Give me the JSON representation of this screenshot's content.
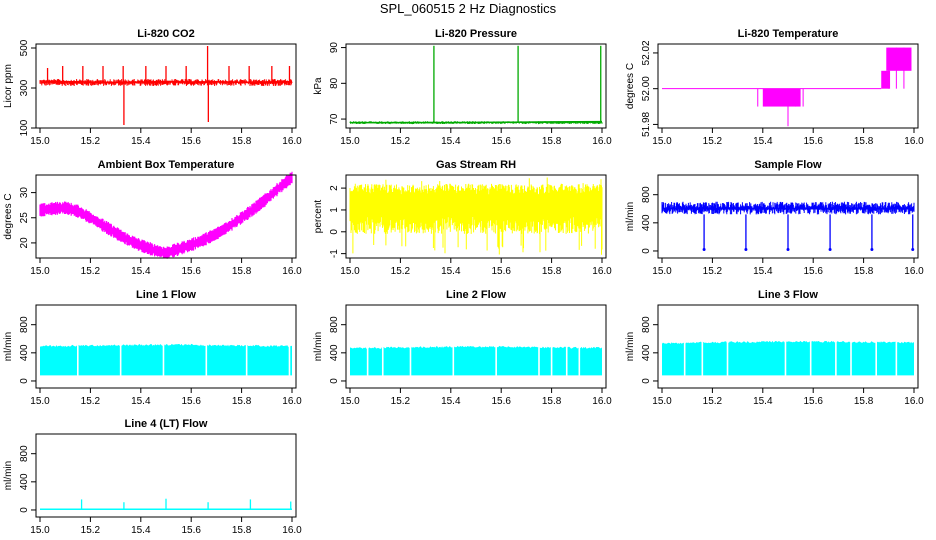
{
  "figure": {
    "title": "SPL_060515  2 Hz Diagnostics"
  },
  "chart_data": [
    {
      "id": "co2",
      "type": "line",
      "title": "Li-820 CO2",
      "ylabel": "Licor ppm",
      "xlabel": "",
      "color": "#ff0000",
      "xlim": [
        15.0,
        16.0
      ],
      "ylim": [
        100,
        520
      ],
      "xticks": [
        15.0,
        15.2,
        15.4,
        15.6,
        15.8,
        16.0
      ],
      "xtick_labels": [
        "15.0",
        "15.2",
        "15.4",
        "15.6",
        "15.8",
        "16.0"
      ],
      "yticks": [
        100,
        300,
        500
      ],
      "ytick_labels": [
        "100",
        "300",
        "500"
      ],
      "noise_band": [
        310,
        345
      ],
      "series": [
        {
          "name": "CO2",
          "x": [
            15.0,
            15.1,
            15.2,
            15.3,
            15.4,
            15.5,
            15.6,
            15.7,
            15.8,
            15.9,
            16.0
          ],
          "y": [
            335,
            332,
            330,
            328,
            330,
            332,
            330,
            331,
            329,
            330,
            331
          ]
        }
      ],
      "spikes": [
        {
          "x": 15.03,
          "y": 400
        },
        {
          "x": 15.09,
          "y": 410
        },
        {
          "x": 15.17,
          "y": 410
        },
        {
          "x": 15.25,
          "y": 410
        },
        {
          "x": 15.33,
          "y": 410
        },
        {
          "x": 15.333,
          "y": 115
        },
        {
          "x": 15.42,
          "y": 410
        },
        {
          "x": 15.5,
          "y": 410
        },
        {
          "x": 15.58,
          "y": 410
        },
        {
          "x": 15.665,
          "y": 510
        },
        {
          "x": 15.668,
          "y": 130
        },
        {
          "x": 15.75,
          "y": 410
        },
        {
          "x": 15.83,
          "y": 410
        },
        {
          "x": 15.92,
          "y": 410
        },
        {
          "x": 15.99,
          "y": 410
        }
      ]
    },
    {
      "id": "pressure",
      "type": "line",
      "title": "Li-820 Pressure",
      "ylabel": "kPa",
      "xlabel": "",
      "color": "#00aa00",
      "xlim": [
        15.0,
        16.0
      ],
      "ylim": [
        67.5,
        91
      ],
      "xticks": [
        15.0,
        15.2,
        15.4,
        15.6,
        15.8,
        16.0
      ],
      "xtick_labels": [
        "15.0",
        "15.2",
        "15.4",
        "15.6",
        "15.8",
        "16.0"
      ],
      "yticks": [
        70,
        80,
        90
      ],
      "ytick_labels": [
        "70",
        "80",
        "90"
      ],
      "noise_band": [
        68.6,
        69.4
      ],
      "series": [
        {
          "name": "Pressure",
          "x": [
            15.0,
            15.2,
            15.4,
            15.6,
            15.8,
            16.0
          ],
          "y": [
            69.0,
            69.0,
            69.0,
            69.1,
            69.2,
            69.3
          ]
        }
      ],
      "spikes": [
        {
          "x": 15.333,
          "y": 90.5
        },
        {
          "x": 15.667,
          "y": 90.5
        },
        {
          "x": 15.995,
          "y": 90.5
        }
      ]
    },
    {
      "id": "licor-temp",
      "type": "line",
      "title": "Li-820 Temperature",
      "ylabel": "degrees C",
      "xlabel": "",
      "color": "#ff00ff",
      "xlim": [
        15.0,
        16.0
      ],
      "ylim": [
        51.978,
        52.025
      ],
      "xticks": [
        15.0,
        15.2,
        15.4,
        15.6,
        15.8,
        16.0
      ],
      "xtick_labels": [
        "15.0",
        "15.2",
        "15.4",
        "15.6",
        "15.8",
        "16.0"
      ],
      "yticks": [
        51.98,
        52.0,
        52.02
      ],
      "ytick_labels": [
        "51.98",
        "52.00",
        "52.02"
      ],
      "series": [
        {
          "name": "Temperature",
          "x": [
            15.0,
            15.4,
            15.4,
            15.55,
            15.55,
            15.87,
            15.87,
            16.0
          ],
          "y": [
            52.0,
            52.0,
            51.99,
            51.99,
            52.0,
            52.0,
            52.01,
            52.02
          ]
        }
      ],
      "blocks": [
        {
          "x0": 15.4,
          "x1": 15.55,
          "y0": 51.99,
          "y1": 52.0
        },
        {
          "x0": 15.87,
          "x1": 15.905,
          "y0": 52.0,
          "y1": 52.01
        },
        {
          "x0": 15.89,
          "x1": 15.99,
          "y0": 52.01,
          "y1": 52.023
        }
      ]
    },
    {
      "id": "ambient-temp",
      "type": "line",
      "title": "Ambient Box Temperature",
      "ylabel": "degrees C",
      "xlabel": "",
      "color": "#ff00ff",
      "xlim": [
        15.0,
        16.0
      ],
      "ylim": [
        17,
        33.5
      ],
      "xticks": [
        15.0,
        15.2,
        15.4,
        15.6,
        15.8,
        16.0
      ],
      "xtick_labels": [
        "15.0",
        "15.2",
        "15.4",
        "15.6",
        "15.8",
        "16.0"
      ],
      "yticks": [
        20,
        25,
        30
      ],
      "ytick_labels": [
        "20",
        "25",
        "30"
      ],
      "band_width": 1.2,
      "series": [
        {
          "name": "Ambient",
          "x": [
            15.0,
            15.05,
            15.1,
            15.15,
            15.2,
            15.25,
            15.3,
            15.35,
            15.4,
            15.45,
            15.5,
            15.55,
            15.6,
            15.65,
            15.7,
            15.75,
            15.8,
            15.85,
            15.9,
            15.95,
            16.0
          ],
          "y": [
            26.5,
            26.8,
            27.0,
            26.3,
            25.0,
            23.5,
            22.0,
            20.6,
            19.5,
            18.6,
            18.0,
            18.8,
            19.6,
            20.6,
            21.8,
            23.3,
            25.0,
            26.8,
            28.8,
            31.0,
            33.0
          ]
        }
      ]
    },
    {
      "id": "gas-rh",
      "type": "line",
      "title": "Gas Stream RH",
      "ylabel": "percent",
      "xlabel": "",
      "color": "#ffff00",
      "xlim": [
        15.0,
        16.0
      ],
      "ylim": [
        -1.2,
        2.6
      ],
      "xticks": [
        15.0,
        15.2,
        15.4,
        15.6,
        15.8,
        16.0
      ],
      "xtick_labels": [
        "15.0",
        "15.2",
        "15.4",
        "15.6",
        "15.8",
        "16.0"
      ],
      "yticks": [
        -1,
        0,
        1,
        2
      ],
      "ytick_labels": [
        "-1",
        "0",
        "1",
        "2"
      ],
      "band": [
        -0.1,
        2.2
      ],
      "spike_min": -1.1,
      "series": [
        {
          "name": "RH",
          "x": [
            15.0,
            16.0
          ],
          "y": [
            1.0,
            1.0
          ]
        }
      ]
    },
    {
      "id": "sample-flow",
      "type": "line",
      "title": "Sample Flow",
      "ylabel": "ml/min",
      "xlabel": "",
      "color": "#0000ff",
      "xlim": [
        15.0,
        16.0
      ],
      "ylim": [
        -100,
        1080
      ],
      "xticks": [
        15.0,
        15.2,
        15.4,
        15.6,
        15.8,
        16.0
      ],
      "xtick_labels": [
        "15.0",
        "15.2",
        "15.4",
        "15.6",
        "15.8",
        "16.0"
      ],
      "yticks": [
        0,
        400,
        800
      ],
      "ytick_labels": [
        "0",
        "400",
        "800"
      ],
      "noise_band": [
        520,
        700
      ],
      "series": [
        {
          "name": "Sample",
          "x": [
            15.0,
            16.0
          ],
          "y": [
            600,
            600
          ]
        }
      ],
      "dips": [
        15.167,
        15.333,
        15.5,
        15.667,
        15.833,
        15.995
      ],
      "dip_value": 20
    },
    {
      "id": "line1",
      "type": "line",
      "title": "Line 1 Flow",
      "ylabel": "ml/min",
      "xlabel": "",
      "color": "#00ffff",
      "xlim": [
        15.0,
        16.0
      ],
      "ylim": [
        -100,
        1080
      ],
      "xticks": [
        15.0,
        15.2,
        15.4,
        15.6,
        15.8,
        16.0
      ],
      "xtick_labels": [
        "15.0",
        "15.2",
        "15.4",
        "15.6",
        "15.8",
        "16.0"
      ],
      "yticks": [
        0,
        400,
        800
      ],
      "ytick_labels": [
        "0",
        "400",
        "800"
      ],
      "band": [
        80,
        560
      ],
      "top": [
        510,
        515,
        520,
        525,
        528,
        520,
        515,
        510
      ],
      "gaps": [
        15.15,
        15.32,
        15.49,
        15.66,
        15.82,
        15.99
      ],
      "series": [
        {
          "name": "Line 1",
          "x": [
            15.0,
            16.0
          ],
          "y": [
            510,
            510
          ]
        }
      ]
    },
    {
      "id": "line2",
      "type": "line",
      "title": "Line 2 Flow",
      "ylabel": "ml/min",
      "xlabel": "",
      "color": "#00ffff",
      "xlim": [
        15.0,
        16.0
      ],
      "ylim": [
        -100,
        1080
      ],
      "xticks": [
        15.0,
        15.2,
        15.4,
        15.6,
        15.8,
        16.0
      ],
      "xtick_labels": [
        "15.0",
        "15.2",
        "15.4",
        "15.6",
        "15.8",
        "16.0"
      ],
      "yticks": [
        0,
        400,
        800
      ],
      "ytick_labels": [
        "0",
        "400",
        "800"
      ],
      "band": [
        80,
        500
      ],
      "top": [
        480,
        490,
        495,
        500,
        498,
        495,
        490,
        485
      ],
      "gaps": [
        15.07,
        15.13,
        15.24,
        15.41,
        15.58,
        15.75,
        15.8,
        15.86,
        15.91
      ],
      "series": [
        {
          "name": "Line 2",
          "x": [
            15.0,
            16.0
          ],
          "y": [
            490,
            490
          ]
        }
      ]
    },
    {
      "id": "line3",
      "type": "line",
      "title": "Line 3 Flow",
      "ylabel": "ml/min",
      "xlabel": "",
      "color": "#00ffff",
      "xlim": [
        15.0,
        16.0
      ],
      "ylim": [
        -100,
        1080
      ],
      "xticks": [
        15.0,
        15.2,
        15.4,
        15.6,
        15.8,
        16.0
      ],
      "xtick_labels": [
        "15.0",
        "15.2",
        "15.4",
        "15.6",
        "15.8",
        "16.0"
      ],
      "yticks": [
        0,
        400,
        800
      ],
      "ytick_labels": [
        "0",
        "400",
        "800"
      ],
      "band": [
        80,
        575
      ],
      "top": [
        550,
        560,
        565,
        570,
        572,
        570,
        565,
        560
      ],
      "gaps": [
        15.09,
        15.16,
        15.26,
        15.49,
        15.59,
        15.69,
        15.75,
        15.85,
        15.93
      ],
      "series": [
        {
          "name": "Line 3",
          "x": [
            15.0,
            16.0
          ],
          "y": [
            560,
            560
          ]
        }
      ]
    },
    {
      "id": "line4",
      "type": "line",
      "title": "Line 4 (LT) Flow",
      "ylabel": "ml/min",
      "xlabel": "",
      "color": "#00ffff",
      "xlim": [
        15.0,
        16.0
      ],
      "ylim": [
        -100,
        1080
      ],
      "xticks": [
        15.0,
        15.2,
        15.4,
        15.6,
        15.8,
        16.0
      ],
      "xtick_labels": [
        "15.0",
        "15.2",
        "15.4",
        "15.6",
        "15.8",
        "16.0"
      ],
      "yticks": [
        0,
        400,
        800
      ],
      "ytick_labels": [
        "0",
        "400",
        "800"
      ],
      "series": [
        {
          "name": "Line 4",
          "x": [
            15.0,
            16.0
          ],
          "y": [
            10,
            10
          ]
        }
      ],
      "spikes": [
        {
          "x": 15.165,
          "y": 150
        },
        {
          "x": 15.333,
          "y": 110
        },
        {
          "x": 15.5,
          "y": 160
        },
        {
          "x": 15.667,
          "y": 110
        },
        {
          "x": 15.835,
          "y": 150
        },
        {
          "x": 15.995,
          "y": 120
        }
      ]
    }
  ]
}
